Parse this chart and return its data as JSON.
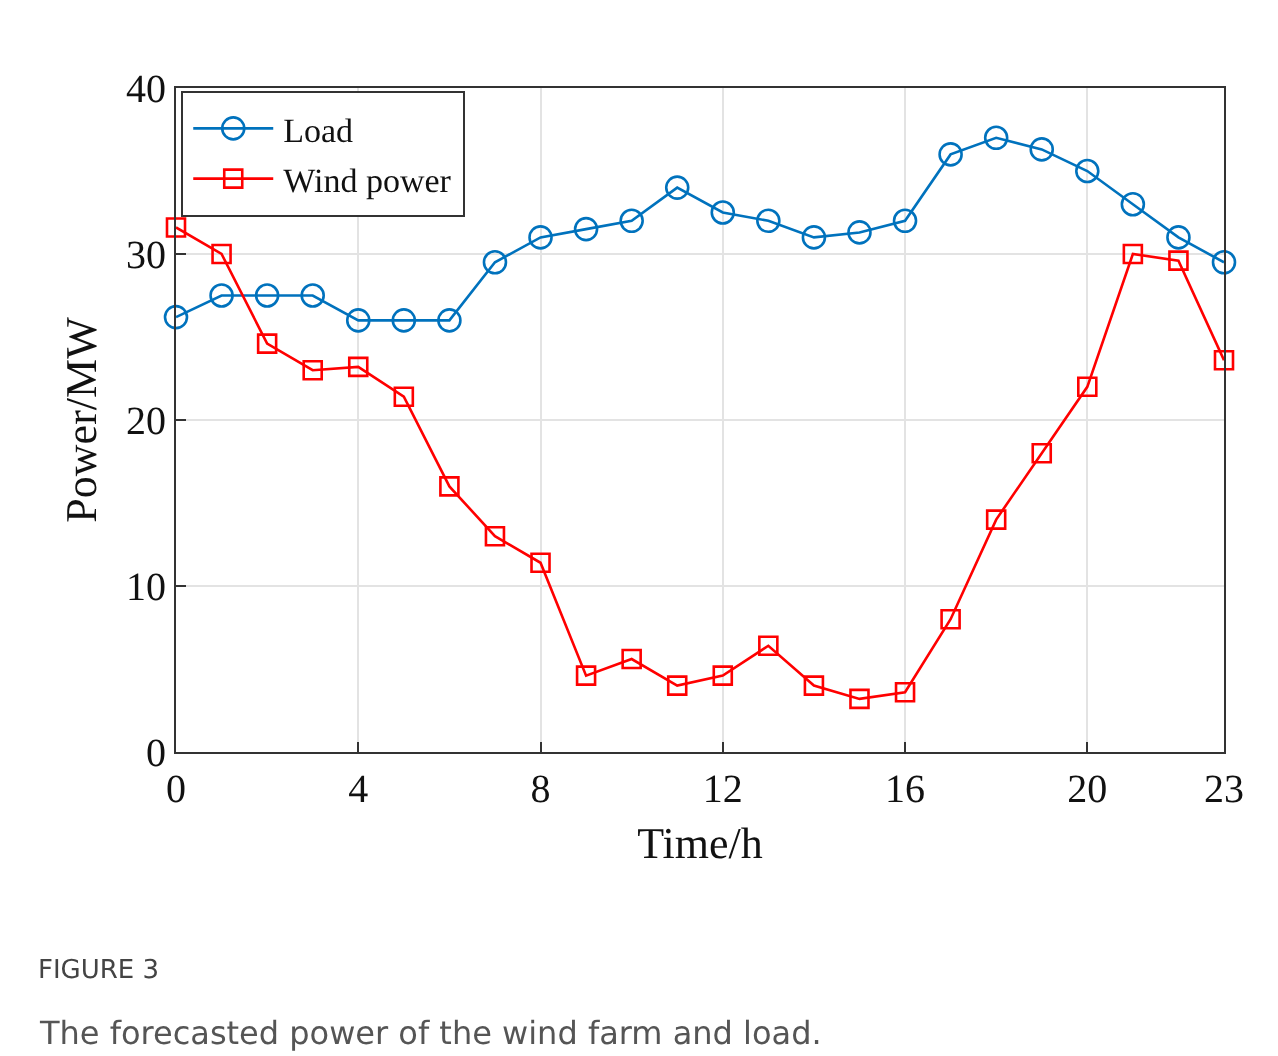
{
  "chart_data": {
    "type": "line",
    "xlabel": "Time/h",
    "ylabel": "Power/MW",
    "x": [
      0,
      1,
      2,
      3,
      4,
      5,
      6,
      7,
      8,
      9,
      10,
      11,
      12,
      13,
      14,
      15,
      16,
      17,
      18,
      19,
      20,
      21,
      22,
      23
    ],
    "series": [
      {
        "name": "Load",
        "color": "#0072bd",
        "marker": "circle",
        "values": [
          26.2,
          27.5,
          27.5,
          27.5,
          26,
          26,
          26,
          29.5,
          31,
          31.5,
          32,
          34,
          32.5,
          32,
          31,
          31.3,
          32,
          36,
          37,
          36.3,
          35,
          33,
          31,
          29.5
        ]
      },
      {
        "name": "Wind power",
        "color": "#ff0000",
        "marker": "square",
        "values": [
          31.6,
          30,
          24.6,
          23,
          23.2,
          21.4,
          16,
          13,
          11.4,
          4.6,
          5.6,
          4,
          4.6,
          6.4,
          4,
          3.2,
          3.6,
          8,
          14,
          18,
          22,
          30,
          29.6,
          23.6
        ]
      }
    ],
    "xlim": [
      0,
      23
    ],
    "xticks": [
      0,
      4,
      8,
      12,
      16,
      20,
      23
    ],
    "ylim": [
      0,
      40
    ],
    "yticks": [
      0,
      10,
      20,
      30,
      40
    ],
    "grid": true,
    "legend": "top left",
    "line_style": "solid",
    "annotations": [
      "FIGURE 3",
      "The forecasted power of the wind farm and load."
    ]
  }
}
